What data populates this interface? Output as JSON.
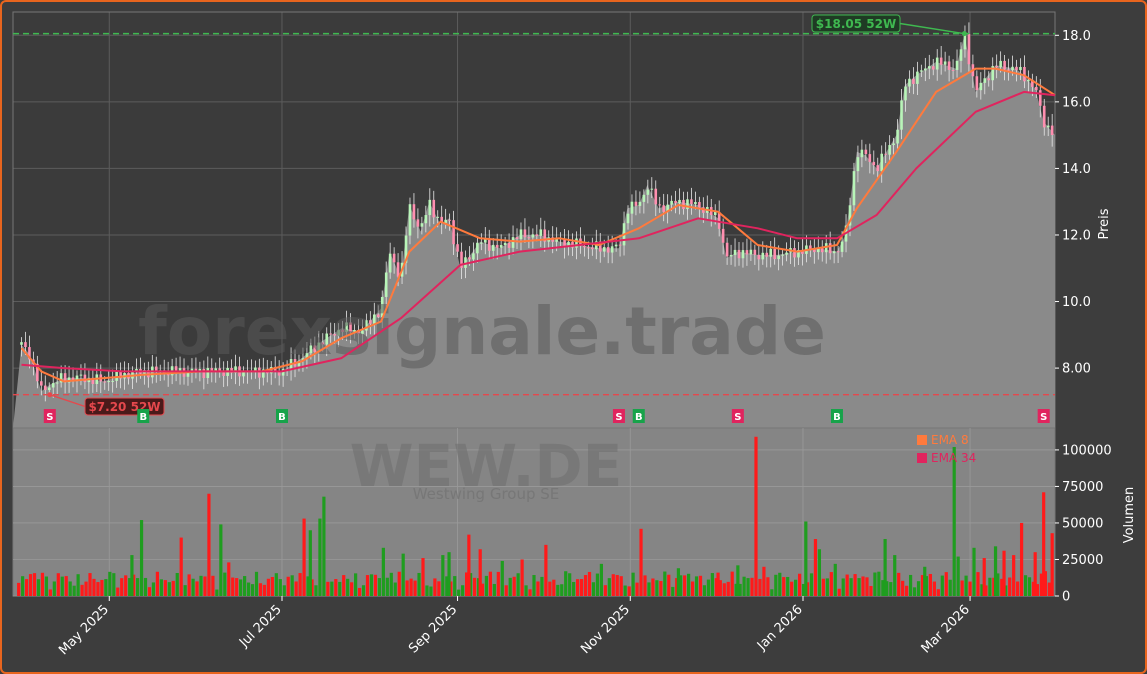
{
  "chart_data": [
    {
      "type": "line",
      "panel": "price",
      "ylabel": "Preis",
      "ylim": [
        6.2,
        18.7
      ],
      "yticks": [
        "8.00",
        "10.0",
        "12.0",
        "14.0",
        "16.0",
        "18.0"
      ],
      "ytick_values": [
        8,
        10,
        12,
        14,
        16,
        18
      ],
      "x_range": [
        "2025-03-28",
        "2026-03-31"
      ],
      "xtick_labels": [
        "May 2025",
        "Jul 2025",
        "Sep 2025",
        "Nov 2025",
        "Jan 2026",
        "Mar 2026"
      ],
      "xtick_dates": [
        "2025-05-01",
        "2025-07-01",
        "2025-09-01",
        "2025-11-01",
        "2026-01-01",
        "2026-03-01"
      ],
      "grid": true,
      "close_series": {
        "x": [
          "2025-03-31",
          "2025-04-03",
          "2025-04-07",
          "2025-04-10",
          "2025-04-15",
          "2025-04-22",
          "2025-04-29",
          "2025-05-06",
          "2025-05-13",
          "2025-05-20",
          "2025-05-27",
          "2025-06-03",
          "2025-06-10",
          "2025-06-17",
          "2025-06-24",
          "2025-07-01",
          "2025-07-08",
          "2025-07-15",
          "2025-07-22",
          "2025-07-29",
          "2025-08-05",
          "2025-08-08",
          "2025-08-12",
          "2025-08-15",
          "2025-08-19",
          "2025-08-22",
          "2025-08-26",
          "2025-08-29",
          "2025-09-02",
          "2025-09-09",
          "2025-09-16",
          "2025-09-23",
          "2025-09-30",
          "2025-10-07",
          "2025-10-14",
          "2025-10-21",
          "2025-10-28",
          "2025-10-31",
          "2025-11-04",
          "2025-11-07",
          "2025-11-11",
          "2025-11-18",
          "2025-11-25",
          "2025-12-02",
          "2025-12-05",
          "2025-12-09",
          "2025-12-16",
          "2025-12-23",
          "2025-12-30",
          "2026-01-06",
          "2026-01-13",
          "2026-01-16",
          "2026-01-20",
          "2026-01-23",
          "2026-01-27",
          "2026-02-03",
          "2026-02-06",
          "2026-02-10",
          "2026-02-17",
          "2026-02-24",
          "2026-02-27",
          "2026-03-03",
          "2026-03-10",
          "2026-03-17",
          "2026-03-20",
          "2026-03-24",
          "2026-03-27",
          "2026-03-31"
        ],
        "y": [
          8.7,
          8.4,
          7.3,
          7.5,
          7.7,
          7.7,
          7.6,
          7.8,
          7.9,
          7.9,
          7.9,
          7.9,
          7.9,
          7.9,
          7.9,
          7.9,
          8.3,
          8.8,
          9.2,
          9.1,
          9.8,
          11.5,
          10.7,
          12.9,
          12.1,
          13.0,
          12.3,
          12.5,
          11.0,
          11.8,
          11.6,
          12.0,
          12.0,
          11.8,
          11.7,
          11.6,
          11.6,
          12.8,
          12.9,
          13.5,
          12.8,
          13.0,
          12.9,
          12.5,
          11.3,
          11.5,
          11.4,
          11.4,
          11.5,
          11.6,
          11.5,
          12.0,
          14.5,
          14.4,
          14.0,
          15.0,
          16.5,
          16.8,
          17.2,
          17.0,
          18.0,
          16.3,
          17.1,
          17.0,
          16.8,
          16.4,
          15.4,
          15.0
        ]
      },
      "series": [
        {
          "name": "EMA 8",
          "color": "#ff7a3d",
          "x": [
            "2025-03-31",
            "2025-04-07",
            "2025-04-15",
            "2025-04-29",
            "2025-05-13",
            "2025-06-03",
            "2025-06-24",
            "2025-07-08",
            "2025-07-22",
            "2025-08-05",
            "2025-08-15",
            "2025-08-26",
            "2025-09-09",
            "2025-09-23",
            "2025-10-07",
            "2025-10-21",
            "2025-11-04",
            "2025-11-18",
            "2025-12-02",
            "2025-12-16",
            "2025-12-30",
            "2026-01-13",
            "2026-01-20",
            "2026-02-03",
            "2026-02-17",
            "2026-03-03",
            "2026-03-10",
            "2026-03-20",
            "2026-03-31"
          ],
          "y": [
            8.6,
            7.9,
            7.6,
            7.7,
            7.8,
            7.9,
            7.9,
            8.2,
            8.9,
            9.4,
            11.5,
            12.4,
            11.9,
            11.8,
            11.9,
            11.7,
            12.2,
            12.9,
            12.7,
            11.7,
            11.5,
            11.7,
            12.8,
            14.5,
            16.3,
            17.0,
            17.0,
            16.8,
            16.2
          ]
        },
        {
          "name": "EMA 34",
          "color": "#e0245e",
          "x": [
            "2025-03-31",
            "2025-04-15",
            "2025-05-06",
            "2025-06-03",
            "2025-07-01",
            "2025-07-22",
            "2025-08-12",
            "2025-09-02",
            "2025-09-23",
            "2025-10-14",
            "2025-11-04",
            "2025-11-25",
            "2025-12-16",
            "2025-12-30",
            "2026-01-13",
            "2026-01-27",
            "2026-02-10",
            "2026-03-03",
            "2026-03-20",
            "2026-03-31"
          ],
          "y": [
            8.1,
            8.0,
            7.9,
            7.9,
            7.9,
            8.3,
            9.5,
            11.1,
            11.5,
            11.7,
            11.9,
            12.5,
            12.2,
            11.9,
            11.9,
            12.6,
            14.0,
            15.7,
            16.3,
            16.2
          ]
        }
      ],
      "hlines": [
        {
          "label": "$18.05 52W",
          "value": 18.05,
          "color": "#3fb950",
          "arrow_date": "2026-02-27"
        },
        {
          "label": "$7.20 52W",
          "value": 7.2,
          "color": "#e5484d",
          "arrow_date": "2025-04-10"
        }
      ],
      "signals": [
        {
          "date": "2025-04-10",
          "label": "S",
          "color": "#e0245e"
        },
        {
          "date": "2025-05-13",
          "label": "B",
          "color": "#17a34a"
        },
        {
          "date": "2025-07-01",
          "label": "B",
          "color": "#17a34a"
        },
        {
          "date": "2025-10-28",
          "label": "S",
          "color": "#e0245e"
        },
        {
          "date": "2025-11-04",
          "label": "B",
          "color": "#17a34a"
        },
        {
          "date": "2025-12-09",
          "label": "S",
          "color": "#e0245e"
        },
        {
          "date": "2026-01-13",
          "label": "B",
          "color": "#17a34a"
        },
        {
          "date": "2026-03-27",
          "label": "S",
          "color": "#e0245e"
        }
      ]
    },
    {
      "type": "bar",
      "panel": "volume",
      "ylabel": "Volumen",
      "ylim": [
        0,
        115000
      ],
      "yticks": [
        "0",
        "25000",
        "50000",
        "75000",
        "100000"
      ],
      "ytick_values": [
        0,
        25000,
        50000,
        75000,
        100000
      ],
      "legend": {
        "placement": "top-right",
        "entries": [
          {
            "name": "EMA 8",
            "color": "#ff7a3d"
          },
          {
            "name": "EMA 34",
            "color": "#e0245e"
          }
        ]
      },
      "up_color": "#1f9d1f",
      "down_color": "#ff1a1a",
      "samples": [
        {
          "date": "2025-04-03",
          "value": 15000,
          "dir": "down"
        },
        {
          "date": "2025-04-28",
          "value": 11000,
          "dir": "down"
        },
        {
          "date": "2025-05-09",
          "value": 28000,
          "dir": "up"
        },
        {
          "date": "2025-05-12",
          "value": 52000,
          "dir": "up"
        },
        {
          "date": "2025-05-26",
          "value": 40000,
          "dir": "down"
        },
        {
          "date": "2025-06-05",
          "value": 70000,
          "dir": "down"
        },
        {
          "date": "2025-06-09",
          "value": 49000,
          "dir": "up"
        },
        {
          "date": "2025-06-12",
          "value": 23000,
          "dir": "down"
        },
        {
          "date": "2025-07-09",
          "value": 53000,
          "dir": "down"
        },
        {
          "date": "2025-07-11",
          "value": 45000,
          "dir": "up"
        },
        {
          "date": "2025-07-14",
          "value": 53000,
          "dir": "up"
        },
        {
          "date": "2025-07-16",
          "value": 68000,
          "dir": "up"
        },
        {
          "date": "2025-08-06",
          "value": 33000,
          "dir": "up"
        },
        {
          "date": "2025-08-13",
          "value": 29000,
          "dir": "up"
        },
        {
          "date": "2025-08-20",
          "value": 26000,
          "dir": "down"
        },
        {
          "date": "2025-08-27",
          "value": 28000,
          "dir": "up"
        },
        {
          "date": "2025-08-29",
          "value": 30000,
          "dir": "up"
        },
        {
          "date": "2025-09-05",
          "value": 42000,
          "dir": "down"
        },
        {
          "date": "2025-09-09",
          "value": 32000,
          "dir": "down"
        },
        {
          "date": "2025-09-17",
          "value": 24000,
          "dir": "up"
        },
        {
          "date": "2025-09-24",
          "value": 25000,
          "dir": "down"
        },
        {
          "date": "2025-10-02",
          "value": 35000,
          "dir": "down"
        },
        {
          "date": "2025-10-22",
          "value": 22000,
          "dir": "up"
        },
        {
          "date": "2025-11-05",
          "value": 46000,
          "dir": "down"
        },
        {
          "date": "2025-11-18",
          "value": 19000,
          "dir": "up"
        },
        {
          "date": "2025-12-02",
          "value": 16000,
          "dir": "down"
        },
        {
          "date": "2025-12-09",
          "value": 21000,
          "dir": "up"
        },
        {
          "date": "2025-12-15",
          "value": 109000,
          "dir": "down"
        },
        {
          "date": "2025-12-18",
          "value": 20000,
          "dir": "down"
        },
        {
          "date": "2026-01-02",
          "value": 51000,
          "dir": "up"
        },
        {
          "date": "2026-01-05",
          "value": 39000,
          "dir": "down"
        },
        {
          "date": "2026-01-07",
          "value": 32000,
          "dir": "up"
        },
        {
          "date": "2026-01-12",
          "value": 22000,
          "dir": "up"
        },
        {
          "date": "2026-01-30",
          "value": 39000,
          "dir": "up"
        },
        {
          "date": "2026-02-02",
          "value": 28000,
          "dir": "up"
        },
        {
          "date": "2026-02-13",
          "value": 20000,
          "dir": "up"
        },
        {
          "date": "2026-02-23",
          "value": 102000,
          "dir": "up"
        },
        {
          "date": "2026-02-25",
          "value": 27000,
          "dir": "up"
        },
        {
          "date": "2026-03-02",
          "value": 33000,
          "dir": "up"
        },
        {
          "date": "2026-03-06",
          "value": 26000,
          "dir": "down"
        },
        {
          "date": "2026-03-10",
          "value": 34000,
          "dir": "up"
        },
        {
          "date": "2026-03-13",
          "value": 31000,
          "dir": "down"
        },
        {
          "date": "2026-03-16",
          "value": 28000,
          "dir": "down"
        },
        {
          "date": "2026-03-19",
          "value": 50000,
          "dir": "down"
        },
        {
          "date": "2026-03-24",
          "value": 30000,
          "dir": "down"
        },
        {
          "date": "2026-03-27",
          "value": 71000,
          "dir": "down"
        },
        {
          "date": "2026-03-30",
          "value": 43000,
          "dir": "down"
        }
      ]
    }
  ],
  "watermark": {
    "text": "forexsignale.trade"
  },
  "ticker": {
    "symbol": "WEW.DE",
    "company": "Westwing Group SE"
  }
}
